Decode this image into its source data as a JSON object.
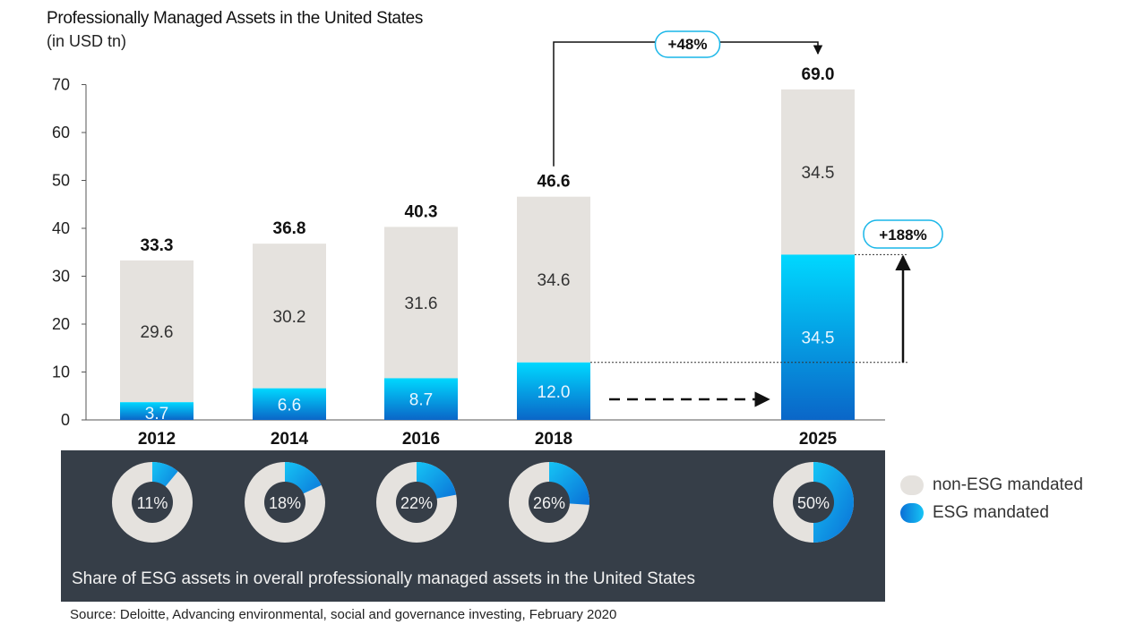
{
  "title": "Professionally Managed Assets in the United States",
  "subtitle": "(in USD tn)",
  "source": "Source: Deloitte, Advancing environmental, social and governance investing, February 2020",
  "panel_caption": "Share of ESG assets in overall professionally managed assets in the United States",
  "legend": {
    "non_esg": "non-ESG mandated",
    "esg": "ESG mandated"
  },
  "colors": {
    "non_esg": "#e5e2de",
    "esg_top": "#00d8ff",
    "esg_bottom": "#0a66c8",
    "panel": "#363e48",
    "callout_border": "#19b6e8"
  },
  "callouts": {
    "growth_total": "+48%",
    "growth_esg": "+188%"
  },
  "chart_data": {
    "type": "bar",
    "stacked": true,
    "title": "Professionally Managed Assets in the United States",
    "ylabel": "(in USD tn)",
    "ylim": [
      0,
      70
    ],
    "yticks": [
      "0",
      "10",
      "20",
      "30",
      "40",
      "50",
      "60",
      "70"
    ],
    "categories": [
      "2012",
      "2014",
      "2016",
      "2018",
      "2025"
    ],
    "series": [
      {
        "name": "ESG mandated",
        "values": [
          3.7,
          6.6,
          8.7,
          12.0,
          34.5
        ],
        "labels": [
          "3.7",
          "6.6",
          "8.7",
          "12.0",
          "34.5"
        ]
      },
      {
        "name": "non-ESG mandated",
        "values": [
          29.6,
          30.2,
          31.6,
          34.6,
          34.5
        ],
        "labels": [
          "29.6",
          "30.2",
          "31.6",
          "34.6",
          "34.5"
        ]
      }
    ],
    "totals": [
      33.3,
      36.8,
      40.3,
      46.6,
      69.0
    ],
    "total_labels": [
      "33.3",
      "36.8",
      "40.3",
      "46.6",
      "69.0"
    ],
    "esg_share": [
      11,
      18,
      22,
      26,
      50
    ],
    "esg_share_labels": [
      "11%",
      "18%",
      "22%",
      "26%",
      "50%"
    ]
  }
}
